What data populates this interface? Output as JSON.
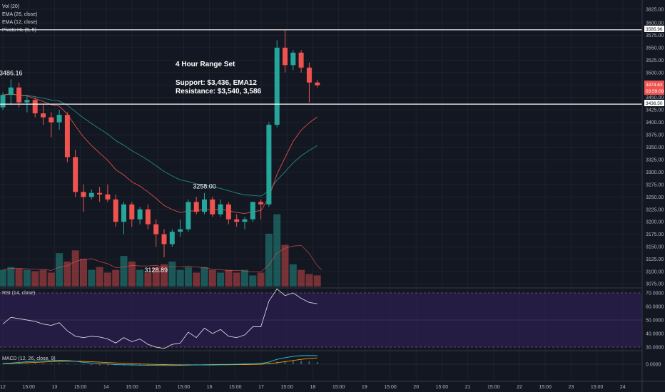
{
  "indicators": {
    "vol": "Vol (20)",
    "ema26": "EMA (26, close)",
    "ema12": "EMA (12, close)",
    "pivots": "Pivots HL (5, 5)",
    "rsi": "RSI (14, close)",
    "macd": "MACD (12, 26, close, 9)"
  },
  "annotation": {
    "title": "4 Hour Range Set",
    "support": "Support: $3,436, EMA12",
    "resistance": "Resistance: $3,540, 3,586"
  },
  "pivot_labels": [
    {
      "text": "3486.16",
      "bar": 1,
      "price": 3486.16,
      "side": "high"
    },
    {
      "text": "3258.00",
      "bar": 25,
      "price": 3258.0,
      "side": "high"
    },
    {
      "text": "3128.89",
      "bar": 19,
      "price": 3128.89,
      "side": "low"
    }
  ],
  "price_tags": {
    "level_top": "3585.96",
    "last_price": "3474.63",
    "countdown": "03:59:09",
    "level_bottom": "3436.50"
  },
  "price_axis": [
    "3825.00",
    "3600.00",
    "3575.00",
    "3550.00",
    "3525.00",
    "3500.00",
    "3475.00",
    "3450.00",
    "3425.00",
    "3400.00",
    "3375.00",
    "3350.00",
    "3325.00",
    "3300.00",
    "3275.00",
    "3250.00",
    "3225.00",
    "3200.00",
    "3175.00",
    "3150.00",
    "3125.00",
    "3100.00",
    "3075.00"
  ],
  "rsi_axis": [
    "70.0000",
    "60.0000",
    "50.0000",
    "40.0000",
    "30.0000"
  ],
  "macd_axis": [
    "0.0000"
  ],
  "time_axis": [
    "12",
    "15:00",
    "13",
    "15:00",
    "14",
    "15:00",
    "15",
    "15:00",
    "16",
    "15:00",
    "17",
    "15:00",
    "18",
    "15:00",
    "19",
    "15:00",
    "20",
    "15:00",
    "21",
    "15:00",
    "22",
    "15:00",
    "23",
    "15:00",
    "24"
  ],
  "colors": {
    "up": "#26a69a",
    "down": "#ef5350",
    "ema12": "#ef5350",
    "ema26": "#26a69a",
    "rsi": "#d1d4dc",
    "rsi_band": "#2b1f4d",
    "macd": "#26c6da",
    "signal": "#ff9800",
    "level": "#ffffff"
  },
  "chart_data": {
    "type": "candlestick",
    "timeframe": "4h",
    "levels": [
      3585.96,
      3436.5
    ],
    "candles": [
      {
        "o": 3430,
        "h": 3460,
        "l": 3425,
        "c": 3455
      },
      {
        "o": 3455,
        "h": 3486.16,
        "l": 3435,
        "c": 3470
      },
      {
        "o": 3470,
        "h": 3480,
        "l": 3430,
        "c": 3440
      },
      {
        "o": 3440,
        "h": 3455,
        "l": 3420,
        "c": 3445
      },
      {
        "o": 3445,
        "h": 3450,
        "l": 3410,
        "c": 3418
      },
      {
        "o": 3418,
        "h": 3435,
        "l": 3395,
        "c": 3410
      },
      {
        "o": 3410,
        "h": 3420,
        "l": 3370,
        "c": 3400
      },
      {
        "o": 3400,
        "h": 3425,
        "l": 3385,
        "c": 3415
      },
      {
        "o": 3415,
        "h": 3420,
        "l": 3320,
        "c": 3330
      },
      {
        "o": 3330,
        "h": 3345,
        "l": 3250,
        "c": 3260
      },
      {
        "o": 3260,
        "h": 3275,
        "l": 3220,
        "c": 3250
      },
      {
        "o": 3250,
        "h": 3265,
        "l": 3245,
        "c": 3258
      },
      {
        "o": 3258,
        "h": 3270,
        "l": 3240,
        "c": 3255
      },
      {
        "o": 3255,
        "h": 3275,
        "l": 3240,
        "c": 3245
      },
      {
        "o": 3245,
        "h": 3255,
        "l": 3190,
        "c": 3200
      },
      {
        "o": 3200,
        "h": 3240,
        "l": 3175,
        "c": 3235
      },
      {
        "o": 3235,
        "h": 3240,
        "l": 3190,
        "c": 3205
      },
      {
        "o": 3205,
        "h": 3230,
        "l": 3195,
        "c": 3225
      },
      {
        "o": 3225,
        "h": 3235,
        "l": 3185,
        "c": 3195
      },
      {
        "o": 3195,
        "h": 3205,
        "l": 3150,
        "c": 3175
      },
      {
        "o": 3175,
        "h": 3185,
        "l": 3128.89,
        "c": 3155
      },
      {
        "o": 3155,
        "h": 3185,
        "l": 3150,
        "c": 3180
      },
      {
        "o": 3180,
        "h": 3205,
        "l": 3170,
        "c": 3185
      },
      {
        "o": 3185,
        "h": 3245,
        "l": 3180,
        "c": 3240
      },
      {
        "o": 3240,
        "h": 3250,
        "l": 3215,
        "c": 3220
      },
      {
        "o": 3220,
        "h": 3258,
        "l": 3215,
        "c": 3245
      },
      {
        "o": 3245,
        "h": 3250,
        "l": 3210,
        "c": 3215
      },
      {
        "o": 3215,
        "h": 3245,
        "l": 3210,
        "c": 3235
      },
      {
        "o": 3235,
        "h": 3240,
        "l": 3195,
        "c": 3205
      },
      {
        "o": 3205,
        "h": 3215,
        "l": 3190,
        "c": 3200
      },
      {
        "o": 3200,
        "h": 3210,
        "l": 3185,
        "c": 3205
      },
      {
        "o": 3205,
        "h": 3240,
        "l": 3200,
        "c": 3240
      },
      {
        "o": 3240,
        "h": 3245,
        "l": 3205,
        "c": 3235
      },
      {
        "o": 3235,
        "h": 3400,
        "l": 3230,
        "c": 3395
      },
      {
        "o": 3395,
        "h": 3565,
        "l": 3390,
        "c": 3550
      },
      {
        "o": 3550,
        "h": 3586,
        "l": 3500,
        "c": 3515
      },
      {
        "o": 3515,
        "h": 3545,
        "l": 3505,
        "c": 3540
      },
      {
        "o": 3540,
        "h": 3545,
        "l": 3500,
        "c": 3510
      },
      {
        "o": 3510,
        "h": 3520,
        "l": 3440,
        "c": 3480
      },
      {
        "o": 3480,
        "h": 3485,
        "l": 3470,
        "c": 3474.63
      }
    ],
    "volume": [
      6,
      7,
      6.5,
      6,
      5.5,
      6,
      5,
      12,
      9,
      13,
      10,
      6,
      7,
      5,
      6,
      11,
      9,
      6,
      5,
      7,
      8,
      9,
      6,
      7,
      5,
      7,
      6,
      5,
      6,
      5,
      6,
      4,
      5,
      19,
      26,
      15,
      8,
      6,
      4.5,
      4
    ],
    "rsi": [
      47,
      52,
      51,
      50,
      49,
      47,
      46,
      48,
      42,
      38,
      37,
      38,
      37.5,
      36,
      33,
      37,
      34,
      36,
      32,
      30,
      29,
      32,
      33,
      41,
      37,
      44,
      40,
      43,
      38,
      37,
      39,
      45,
      45,
      64,
      73,
      68,
      70,
      66,
      63,
      62
    ],
    "macd_line": [
      3,
      6,
      10,
      13,
      16,
      18,
      20,
      21,
      20,
      16,
      10,
      6,
      3,
      1,
      -2,
      -3,
      -4,
      -5,
      -6,
      -6,
      -7,
      -7,
      -6,
      -5,
      -4,
      -3,
      -2,
      -1,
      -1,
      0,
      1,
      2,
      4,
      12,
      26,
      35,
      42,
      46,
      47,
      46
    ],
    "signal_line": [
      2,
      4,
      6,
      8,
      10,
      12,
      14,
      15,
      16,
      16,
      15,
      13,
      11,
      9,
      7,
      5,
      3,
      1,
      0,
      -1,
      -2,
      -3,
      -4,
      -4,
      -4,
      -4,
      -4,
      -3,
      -3,
      -2,
      -2,
      -1,
      0,
      3,
      8,
      14,
      20,
      26,
      30,
      34
    ],
    "macd_hist": [
      1,
      2,
      3,
      4,
      5,
      6,
      6,
      6,
      4,
      1,
      -3,
      -5,
      -6,
      -6,
      -7,
      -7,
      -6,
      -6,
      -6,
      -5,
      -5,
      -4,
      -3,
      -2,
      -1,
      0,
      1,
      2,
      2,
      2,
      3,
      3,
      4,
      8,
      14,
      18,
      20,
      19,
      16,
      12
    ]
  }
}
